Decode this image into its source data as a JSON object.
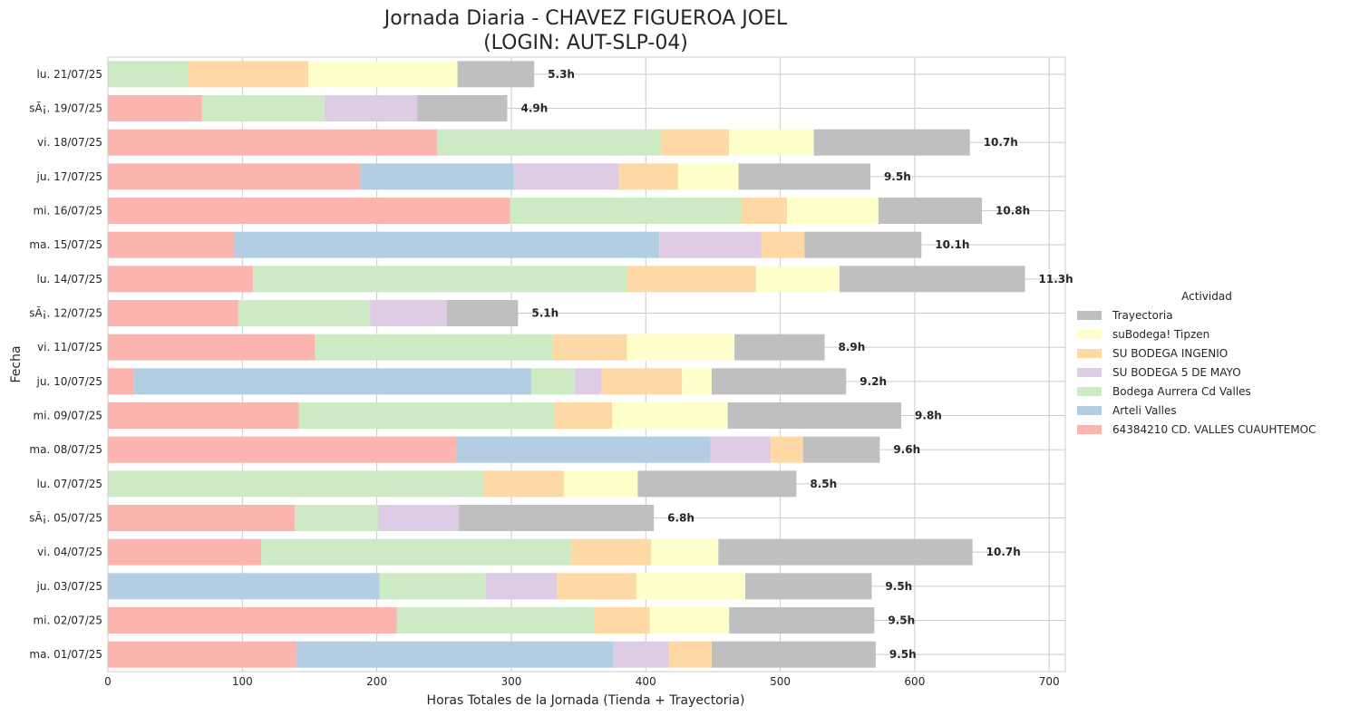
{
  "chart_data": {
    "type": "bar",
    "orientation": "horizontal",
    "stacked": true,
    "title_line1": "Jornada Diaria - CHAVEZ FIGUEROA JOEL",
    "title_line2": "(LOGIN: AUT-SLP-04)",
    "xlabel": "Horas Totales de la Jornada (Tienda + Trayectoria)",
    "ylabel": "Fecha",
    "xlim": [
      0,
      712
    ],
    "xticks": [
      0,
      100,
      200,
      300,
      400,
      500,
      600,
      700
    ],
    "grid": true,
    "legend_title": "Actividad",
    "legend_position": "right",
    "categories": [
      "lu. 21/07/25",
      "sÃ¡. 19/07/25",
      "vi. 18/07/25",
      "ju. 17/07/25",
      "mi. 16/07/25",
      "ma. 15/07/25",
      "lu. 14/07/25",
      "sÃ¡. 12/07/25",
      "vi. 11/07/25",
      "ju. 10/07/25",
      "mi. 09/07/25",
      "ma. 08/07/25",
      "lu. 07/07/25",
      "sÃ¡. 05/07/25",
      "vi. 04/07/25",
      "ju. 03/07/25",
      "mi. 02/07/25",
      "ma. 01/07/25"
    ],
    "totals_labels": [
      "5.3h",
      "4.9h",
      "10.7h",
      "9.5h",
      "10.8h",
      "10.1h",
      "11.3h",
      "5.1h",
      "8.9h",
      "9.2h",
      "9.8h",
      "9.6h",
      "8.5h",
      "6.8h",
      "10.7h",
      "9.5h",
      "9.5h",
      "9.5h"
    ],
    "series": [
      {
        "name": "64384210 CD. VALLES CUAUHTEMOC",
        "color": "#fbb4ae",
        "values": [
          0,
          70,
          245,
          188,
          299,
          94,
          108,
          97,
          154,
          19,
          142,
          259,
          0,
          139,
          114,
          0,
          215,
          140
        ]
      },
      {
        "name": "Arteli Valles",
        "color": "#b3cde3",
        "values": [
          0,
          0,
          0,
          114,
          0,
          316,
          0,
          0,
          0,
          296,
          0,
          189,
          0,
          0,
          0,
          202,
          0,
          236
        ]
      },
      {
        "name": "Bodega Aurrera Cd Valles",
        "color": "#ccebc5",
        "values": [
          60,
          91,
          166,
          0,
          172,
          0,
          278,
          98,
          177,
          32,
          190,
          0,
          279,
          62,
          230,
          79,
          147,
          0
        ]
      },
      {
        "name": "SU BODEGA 5 DE MAYO",
        "color": "#decbe4",
        "values": [
          0,
          69,
          0,
          78,
          0,
          76,
          0,
          57,
          0,
          20,
          0,
          45,
          0,
          60,
          0,
          53,
          0,
          41
        ]
      },
      {
        "name": "SU BODEGA INGENIO",
        "color": "#fed9a6",
        "values": [
          89,
          0,
          51,
          44,
          34,
          32,
          96,
          0,
          55,
          60,
          43,
          24,
          60,
          0,
          60,
          59,
          41,
          32
        ]
      },
      {
        "name": "suBodega! Tipzen",
        "color": "#ffffcc",
        "values": [
          111,
          0,
          63,
          45,
          68,
          0,
          62,
          0,
          80,
          22,
          86,
          0,
          55,
          0,
          50,
          81,
          59,
          0
        ]
      },
      {
        "name": "Trayectoria",
        "color": "#bfbfbf",
        "values": [
          57,
          67,
          116,
          98,
          77,
          87,
          138,
          53,
          67,
          100,
          129,
          57,
          118,
          145,
          189,
          94,
          108,
          122
        ]
      }
    ]
  }
}
